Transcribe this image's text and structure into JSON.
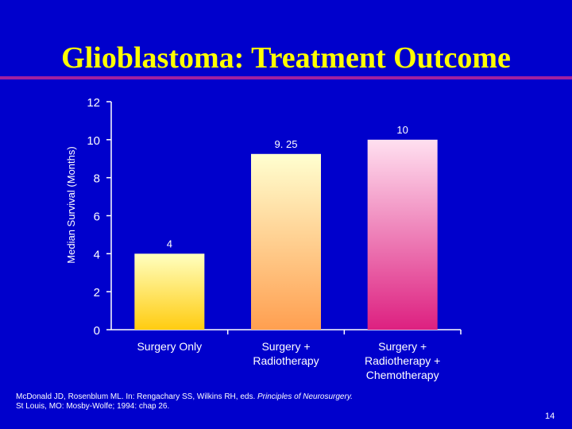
{
  "slide": {
    "title": "Glioblastoma:  Treatment Outcome",
    "footnote_line1_a": "McDonald JD, Rosenblum ML. In: Rengachary SS, Wilkins RH, eds. ",
    "footnote_line1_b": "Principles of Neurosurgery.",
    "footnote_line2": "St Louis, MO: Mosby-Wolfe; 1994: chap 26.",
    "page_number": "14",
    "colors": {
      "background": "#0000cc",
      "title": "#ffff00",
      "rule": "#a020a0",
      "text": "#ffffff"
    }
  },
  "chart_data": {
    "type": "bar",
    "title": "",
    "xlabel": "",
    "ylabel": "Median Survival (Months)",
    "ylim": [
      0,
      12
    ],
    "yticks": [
      0,
      2,
      4,
      6,
      8,
      10,
      12
    ],
    "grid": false,
    "categories": [
      [
        "Surgery Only"
      ],
      [
        "Surgery +",
        "Radiotherapy"
      ],
      [
        "Surgery +",
        "Radiotherapy +",
        "Chemotherapy"
      ]
    ],
    "values": [
      4,
      9.25,
      10
    ],
    "data_labels": [
      "4",
      "9. 25",
      "10"
    ],
    "bar_gradients": [
      [
        "#ffffc0",
        "#ffcc10"
      ],
      [
        "#ffffd0",
        "#ff9f50"
      ],
      [
        "#ffe0f0",
        "#dd2080"
      ]
    ]
  }
}
